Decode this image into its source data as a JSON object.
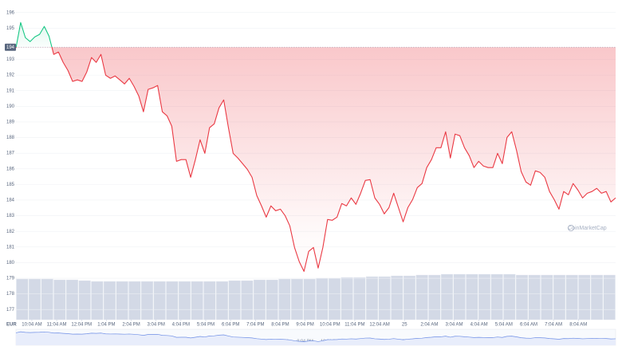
{
  "chart_data": {
    "type": "line",
    "currency": "EUR",
    "watermark": "CoinMarketCap",
    "baseline": {
      "value": 193.78,
      "label": "194"
    },
    "up_color": "#16c784",
    "down_color": "#ea3943",
    "grid": true,
    "xlim": [
      9.43,
      33.57
    ],
    "xticks": [
      {
        "value": 10.07,
        "label": "10:04 AM"
      },
      {
        "value": 11.07,
        "label": "11:04 AM"
      },
      {
        "value": 12.07,
        "label": "12:04 PM"
      },
      {
        "value": 13.07,
        "label": "1:04 PM"
      },
      {
        "value": 14.07,
        "label": "2:04 PM"
      },
      {
        "value": 15.07,
        "label": "3:04 PM"
      },
      {
        "value": 16.07,
        "label": "4:04 PM"
      },
      {
        "value": 17.07,
        "label": "5:04 PM"
      },
      {
        "value": 18.07,
        "label": "6:04 PM"
      },
      {
        "value": 19.07,
        "label": "7:04 PM"
      },
      {
        "value": 20.07,
        "label": "8:04 PM"
      },
      {
        "value": 21.07,
        "label": "9:04 PM"
      },
      {
        "value": 22.07,
        "label": "10:04 PM"
      },
      {
        "value": 23.07,
        "label": "11:04 PM"
      },
      {
        "value": 24.07,
        "label": "12:04 AM"
      },
      {
        "value": 25.07,
        "label": "25"
      },
      {
        "value": 26.07,
        "label": "2:04 AM"
      },
      {
        "value": 27.07,
        "label": "3:04 AM"
      },
      {
        "value": 28.07,
        "label": "4:04 AM"
      },
      {
        "value": 29.07,
        "label": "5:04 AM"
      },
      {
        "value": 30.07,
        "label": "6:04 AM"
      },
      {
        "value": 31.07,
        "label": "7:04 AM"
      },
      {
        "value": 32.07,
        "label": "8:04 AM"
      }
    ],
    "ylim": [
      176.4,
      196.8
    ],
    "yticks": [
      196,
      195,
      193,
      192,
      191,
      190,
      189,
      188,
      187,
      186,
      185,
      184,
      183,
      182,
      181,
      180,
      179,
      178,
      177
    ],
    "values": [
      193.73,
      195.36,
      194.39,
      194.14,
      194.44,
      194.6,
      195.11,
      194.49,
      193.32,
      193.47,
      192.81,
      192.3,
      191.59,
      191.69,
      191.59,
      192.2,
      193.12,
      192.81,
      193.32,
      191.99,
      191.79,
      191.94,
      191.69,
      191.43,
      191.79,
      191.28,
      190.67,
      189.65,
      191.08,
      191.18,
      191.33,
      189.65,
      189.39,
      188.73,
      186.48,
      186.59,
      186.59,
      185.46,
      186.59,
      187.86,
      186.99,
      188.63,
      188.88,
      189.9,
      190.41,
      188.63,
      186.99,
      186.69,
      186.33,
      185.97,
      185.46,
      184.29,
      183.63,
      182.91,
      183.63,
      183.32,
      183.42,
      183.01,
      182.35,
      180.97,
      180.06,
      179.44,
      180.72,
      180.97,
      179.65,
      180.97,
      182.76,
      182.71,
      182.91,
      183.78,
      183.63,
      184.14,
      183.73,
      184.44,
      185.26,
      185.31,
      184.14,
      183.73,
      183.12,
      183.52,
      184.44,
      183.52,
      182.61,
      183.52,
      184.03,
      184.8,
      185.06,
      186.08,
      186.59,
      187.35,
      187.35,
      188.37,
      186.69,
      188.22,
      188.12,
      187.35,
      186.84,
      186.08,
      186.48,
      186.18,
      186.08,
      186.08,
      186.99,
      186.33,
      188.01,
      188.37,
      187.2,
      185.82,
      185.16,
      184.95,
      185.87,
      185.77,
      185.46,
      184.55,
      184.03,
      183.42,
      184.55,
      184.34,
      185.06,
      184.65,
      184.14,
      184.44,
      184.55,
      184.75,
      184.44,
      184.55,
      183.88,
      184.14
    ],
    "volume_ylim": [
      0,
      100
    ],
    "volume_color": "#d3d9e6",
    "volume_values": [
      51,
      51,
      51,
      50,
      50,
      49,
      48,
      48,
      48,
      48,
      48,
      48,
      48,
      48,
      48,
      48,
      48,
      49,
      49,
      50,
      50,
      51,
      51,
      51,
      52,
      52,
      53,
      53,
      54,
      54,
      55,
      55,
      56,
      56,
      57,
      57,
      57,
      57,
      57,
      57,
      56,
      56,
      56,
      56,
      56,
      56,
      56,
      56
    ]
  }
}
